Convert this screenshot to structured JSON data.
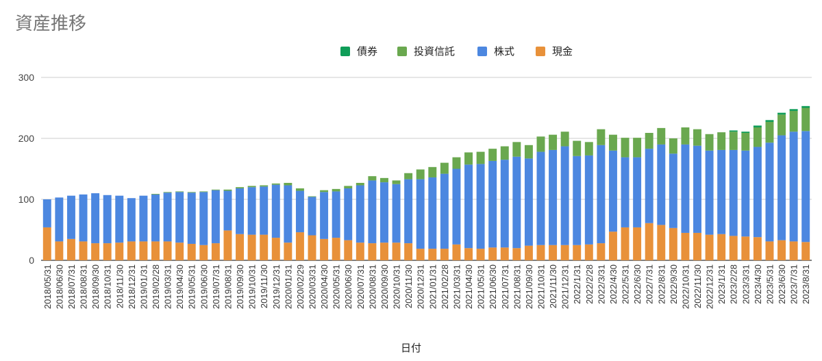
{
  "chart_data": {
    "type": "bar",
    "stacked": true,
    "title": "資産推移",
    "xlabel": "日付",
    "ylabel": "",
    "ylim": [
      0,
      300
    ],
    "yticks": [
      0,
      100,
      200,
      300
    ],
    "grid": true,
    "legend_position": "top",
    "categories": [
      "2018/05/31",
      "2018/06/30",
      "2018/07/31",
      "2018/08/31",
      "2018/09/30",
      "2018/10/31",
      "2018/11/30",
      "2018/12/31",
      "2019/01/31",
      "2019/02/28",
      "2019/03/31",
      "2019/04/30",
      "2019/05/31",
      "2019/06/30",
      "2019/07/31",
      "2019/08/31",
      "2019/09/30",
      "2019/10/31",
      "2019/11/30",
      "2019/12/31",
      "2020/01/31",
      "2020/02/29",
      "2020/03/31",
      "2020/04/30",
      "2020/05/31",
      "2020/06/30",
      "2020/07/31",
      "2020/08/31",
      "2020/09/30",
      "2020/10/31",
      "2020/11/30",
      "2020/12/31",
      "2021/01/31",
      "2021/02/28",
      "2021/03/31",
      "2021/04/30",
      "2021/05/31",
      "2021/06/30",
      "2021/07/31",
      "2021/08/31",
      "2021/09/30",
      "2021/10/31",
      "2021/11/30",
      "2021/12/31",
      "2022/1/31",
      "2022/2/28",
      "2022/3/31",
      "2022/4/30",
      "2022/5/31",
      "2022/6/30",
      "2022/7/31",
      "2022/8/31",
      "2022/9/30",
      "2022/10/31",
      "2022/11/30",
      "2022/12/31",
      "2023/1/31",
      "2023/2/28",
      "2023/3/31",
      "2023/4/30",
      "2023/5/31",
      "2023/6/30",
      "2023/7/31",
      "2023/8/31"
    ],
    "series": [
      {
        "name": "現金",
        "color": "#e8913a",
        "values": [
          54,
          31,
          35,
          31,
          28,
          28,
          29,
          31,
          31,
          31,
          31,
          29,
          27,
          25,
          28,
          49,
          43,
          42,
          42,
          37,
          29,
          46,
          41,
          35,
          37,
          33,
          29,
          28,
          29,
          29,
          28,
          19,
          19,
          19,
          26,
          20,
          19,
          21,
          21,
          20,
          24,
          25,
          25,
          25,
          25,
          26,
          28,
          47,
          54,
          54,
          61,
          58,
          53,
          45,
          45,
          42,
          43,
          40,
          39,
          38,
          31,
          33,
          31,
          30
        ],
        "visible": true
      },
      {
        "name": "株式",
        "color": "#4c87e0",
        "values": [
          46,
          72,
          71,
          77,
          82,
          79,
          77,
          71,
          75,
          77,
          80,
          83,
          84,
          87,
          87,
          65,
          75,
          78,
          79,
          87,
          94,
          68,
          63,
          77,
          76,
          85,
          94,
          103,
          99,
          96,
          105,
          114,
          117,
          123,
          124,
          137,
          139,
          142,
          144,
          150,
          143,
          153,
          156,
          162,
          146,
          146,
          161,
          133,
          115,
          115,
          122,
          132,
          122,
          145,
          143,
          138,
          138,
          141,
          141,
          148,
          162,
          172,
          180,
          182
        ]
      },
      {
        "name": "投資信託",
        "color": "#6aa84f",
        "values": [
          0,
          0,
          0,
          0,
          0,
          0,
          0,
          0,
          0,
          1,
          1,
          1,
          1,
          1,
          1,
          2,
          2,
          2,
          2,
          2,
          4,
          4,
          1,
          3,
          4,
          4,
          4,
          7,
          7,
          6,
          10,
          16,
          17,
          18,
          19,
          20,
          20,
          20,
          22,
          24,
          22,
          25,
          25,
          24,
          25,
          22,
          26,
          26,
          32,
          32,
          26,
          27,
          25,
          28,
          27,
          27,
          29,
          30,
          29,
          32,
          34,
          34,
          34,
          38
        ]
      },
      {
        "name": "債券",
        "color": "#0f9d58",
        "values": [
          0,
          0,
          0,
          0,
          0,
          0,
          0,
          0,
          0,
          0,
          0,
          0,
          0,
          0,
          0,
          0,
          0,
          0,
          0,
          0,
          0,
          0,
          0,
          0,
          0,
          0,
          0,
          0,
          0,
          0,
          0,
          0,
          0,
          0,
          0,
          0,
          0,
          0,
          0,
          0,
          0,
          0,
          0,
          0,
          0,
          0,
          0,
          0,
          0,
          0,
          0,
          0,
          0,
          0,
          0,
          0,
          0,
          2,
          2,
          3,
          3,
          3,
          3,
          3
        ]
      }
    ],
    "legend": [
      "債券",
      "投資信託",
      "株式",
      "現金"
    ]
  }
}
